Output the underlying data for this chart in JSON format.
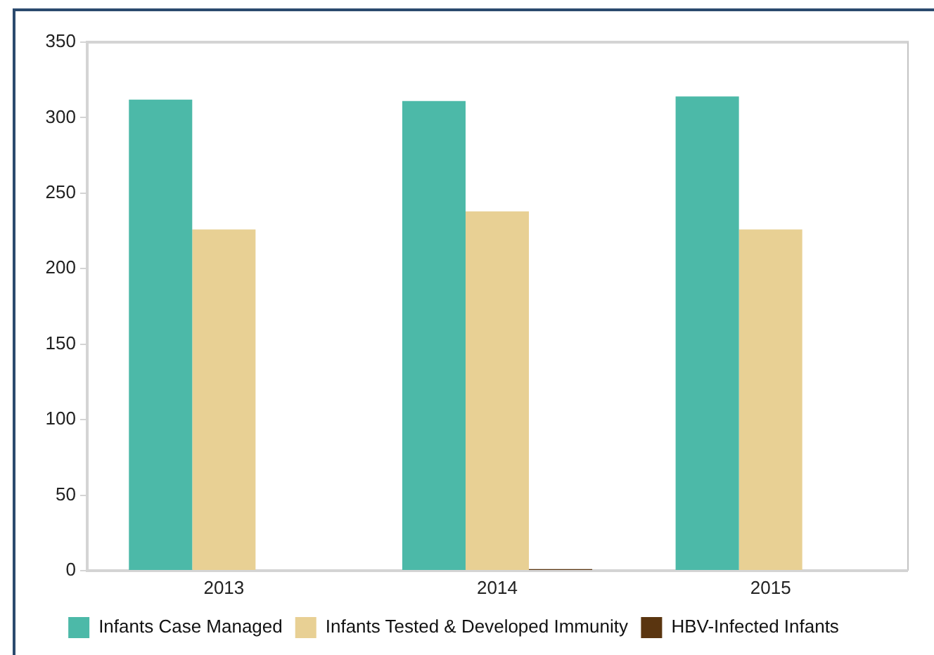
{
  "chart_data": {
    "type": "bar",
    "categories": [
      "2013",
      "2014",
      "2015"
    ],
    "series": [
      {
        "name": "Infants Case Managed",
        "color": "#4cb9a8",
        "values": [
          312,
          311,
          314
        ]
      },
      {
        "name": "Infants Tested & Developed Immunity",
        "color": "#e8d094",
        "values": [
          226,
          238,
          226
        ]
      },
      {
        "name": "HBV-Infected Infants",
        "color": "#5a3510",
        "values": [
          0,
          1,
          0
        ]
      }
    ],
    "ylim": [
      0,
      350
    ],
    "yticks": [
      0,
      50,
      100,
      150,
      200,
      250,
      300,
      350
    ],
    "grid": false,
    "legend": "bottom"
  }
}
